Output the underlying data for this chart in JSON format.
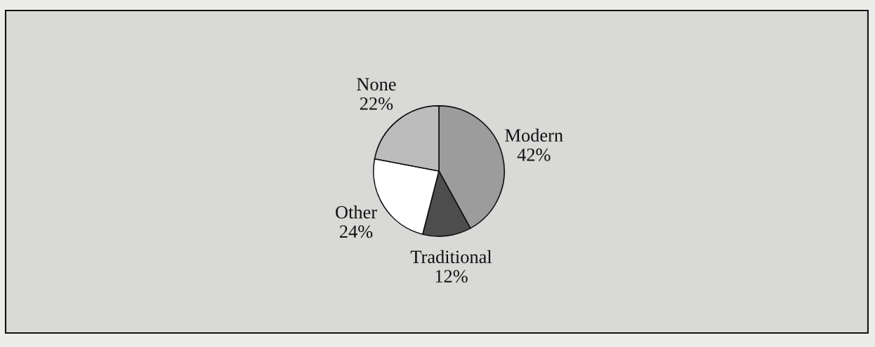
{
  "chart_data": {
    "type": "pie",
    "categories": [
      "Modern",
      "Traditional",
      "Other",
      "None"
    ],
    "values": [
      42,
      12,
      24,
      22
    ],
    "value_labels": [
      "42%",
      "12%",
      "24%",
      "22%"
    ],
    "colors": [
      "#9c9c9c",
      "#4d4d4d",
      "#ffffff",
      "#bcbcbc"
    ]
  }
}
